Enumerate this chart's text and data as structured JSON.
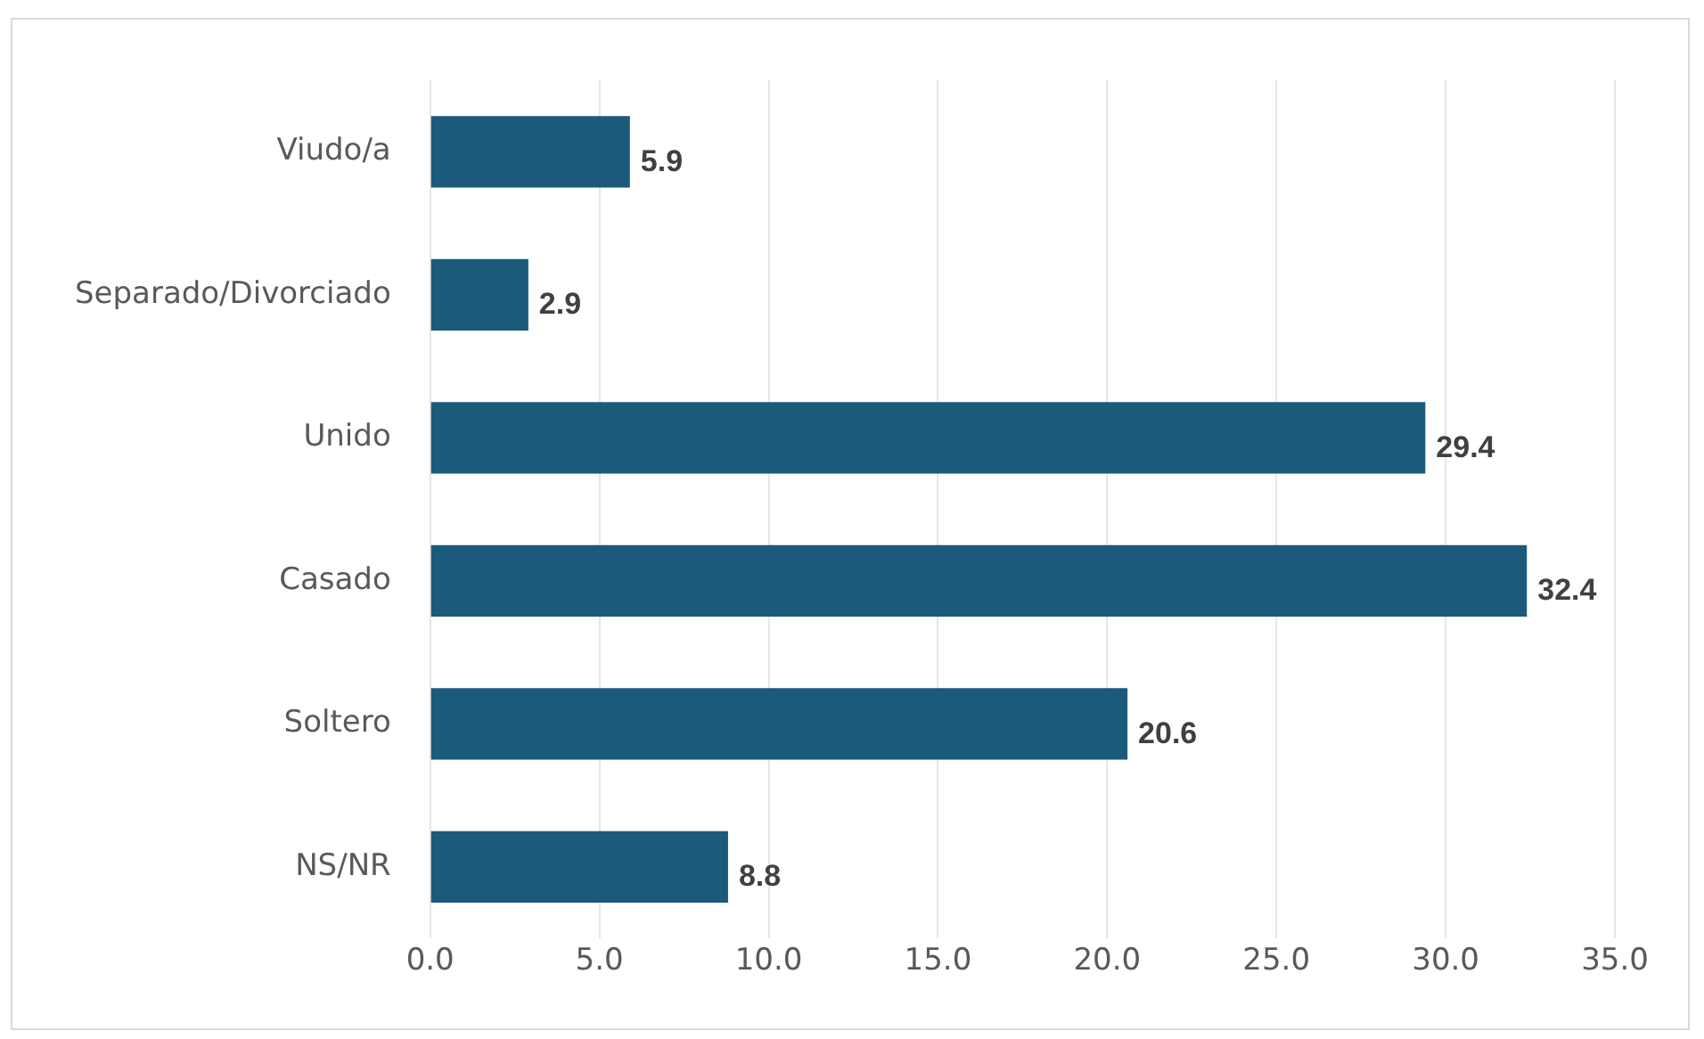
{
  "chart_data": {
    "type": "bar",
    "orientation": "horizontal",
    "categories": [
      "Viudo/a",
      "Separado/Divorciado",
      "Unido",
      "Casado",
      "Soltero",
      "NS/NR"
    ],
    "values": [
      5.9,
      2.9,
      29.4,
      32.4,
      20.6,
      8.8
    ],
    "color": "#1b5a7a",
    "xlim": [
      0,
      35
    ],
    "xticks": [
      {
        "value": 0,
        "label": "0.0"
      },
      {
        "value": 5,
        "label": "5.0"
      },
      {
        "value": 10,
        "label": "10.0"
      },
      {
        "value": 15,
        "label": "15.0"
      },
      {
        "value": 20,
        "label": "20.0"
      },
      {
        "value": 25,
        "label": "25.0"
      },
      {
        "value": 30,
        "label": "30.0"
      },
      {
        "value": 35,
        "label": "35.0"
      }
    ],
    "grid": "x",
    "data_labels": true
  }
}
